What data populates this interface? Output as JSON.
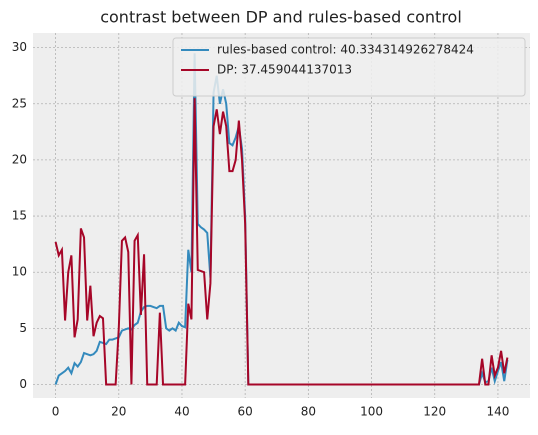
{
  "chart_data": {
    "type": "line",
    "title": "contrast between DP and rules-based control",
    "x": [
      0,
      1,
      2,
      3,
      4,
      5,
      6,
      7,
      8,
      9,
      10,
      11,
      12,
      13,
      14,
      15,
      16,
      17,
      18,
      19,
      20,
      21,
      22,
      23,
      24,
      25,
      26,
      27,
      28,
      29,
      30,
      31,
      32,
      33,
      34,
      35,
      36,
      37,
      38,
      39,
      40,
      41,
      42,
      43,
      44,
      45,
      46,
      47,
      48,
      49,
      50,
      51,
      52,
      53,
      54,
      55,
      56,
      57,
      58,
      59,
      60,
      61,
      62,
      63,
      64,
      65,
      66,
      67,
      68,
      69,
      70,
      71,
      72,
      73,
      74,
      75,
      76,
      77,
      78,
      79,
      80,
      81,
      82,
      83,
      84,
      85,
      86,
      87,
      88,
      89,
      90,
      91,
      92,
      93,
      94,
      95,
      96,
      97,
      98,
      99,
      100,
      101,
      102,
      103,
      104,
      105,
      106,
      107,
      108,
      109,
      110,
      111,
      112,
      113,
      114,
      115,
      116,
      117,
      118,
      119,
      120,
      121,
      122,
      123,
      124,
      125,
      126,
      127,
      128,
      129,
      130,
      131,
      132,
      133,
      134,
      135,
      136,
      137,
      138,
      139,
      140,
      141,
      142,
      143
    ],
    "series": [
      {
        "name": "rules-based control: 40.334314926278424",
        "color": "#348ABD",
        "values": [
          0,
          0.8,
          1.0,
          1.2,
          1.5,
          1.0,
          1.9,
          1.6,
          2.0,
          2.8,
          2.7,
          2.6,
          2.7,
          3.0,
          3.8,
          3.7,
          3.6,
          4.0,
          4.0,
          4.1,
          4.2,
          4.8,
          4.9,
          5.0,
          4.9,
          5.3,
          5.5,
          6.5,
          6.9,
          7.0,
          7.0,
          6.9,
          6.8,
          7.0,
          7.0,
          5.0,
          4.8,
          5.0,
          4.8,
          5.5,
          5.2,
          5.1,
          12.0,
          10.0,
          29.5,
          14.3,
          14.0,
          13.8,
          13.5,
          9.5,
          26.0,
          27.5,
          25.0,
          26.3,
          25.0,
          21.5,
          21.3,
          22.0,
          23.0,
          21.0,
          15.0,
          0,
          0,
          0,
          0,
          0,
          0,
          0,
          0,
          0,
          0,
          0,
          0,
          0,
          0,
          0,
          0,
          0,
          0,
          0,
          0,
          0,
          0,
          0,
          0,
          0,
          0,
          0,
          0,
          0,
          0,
          0,
          0,
          0,
          0,
          0,
          0,
          0,
          0,
          0,
          0,
          0,
          0,
          0,
          0,
          0,
          0,
          0,
          0,
          0,
          0,
          0,
          0,
          0,
          0,
          0,
          0,
          0,
          0,
          0,
          0,
          0,
          0,
          0,
          0,
          0,
          0,
          0,
          0,
          0,
          0,
          0,
          0,
          0,
          0,
          1.0,
          0.2,
          0.3,
          1.5,
          0.3,
          1.2,
          2.0,
          0.3,
          2.2
        ]
      },
      {
        "name": "DP: 37.459044137013",
        "color": "#A60628",
        "values": [
          12.7,
          11.5,
          12.0,
          5.7,
          10.0,
          11.5,
          4.2,
          5.8,
          13.9,
          13.1,
          5.7,
          8.8,
          4.3,
          5.5,
          6.1,
          5.9,
          0,
          0,
          0,
          0,
          5.0,
          12.8,
          13.1,
          11.8,
          0,
          12.8,
          13.3,
          6.2,
          11.6,
          0,
          0,
          0,
          0,
          6.4,
          0,
          0,
          0,
          0,
          0,
          0,
          0,
          0,
          7.2,
          5.8,
          25.5,
          10.2,
          10.1,
          10.0,
          5.8,
          9.0,
          23.0,
          24.5,
          22.3,
          24.3,
          23.0,
          19.0,
          19.0,
          20.0,
          23.5,
          20.0,
          14.3,
          0,
          0,
          0,
          0,
          0,
          0,
          0,
          0,
          0,
          0,
          0,
          0,
          0,
          0,
          0,
          0,
          0,
          0,
          0,
          0,
          0,
          0,
          0,
          0,
          0,
          0,
          0,
          0,
          0,
          0,
          0,
          0,
          0,
          0,
          0,
          0,
          0,
          0,
          0,
          0,
          0,
          0,
          0,
          0,
          0,
          0,
          0,
          0,
          0,
          0,
          0,
          0,
          0,
          0,
          0,
          0,
          0,
          0,
          0,
          0,
          0,
          0,
          0,
          0,
          0,
          0,
          0,
          0,
          0,
          0,
          0,
          0,
          0,
          0,
          2.3,
          0,
          0,
          2.6,
          0.8,
          1.5,
          3.0,
          1.0,
          2.4
        ]
      }
    ],
    "xlim": [
      -7.15,
      150.15
    ],
    "xticks": [
      0,
      20,
      40,
      60,
      80,
      100,
      120,
      140
    ],
    "ylim": [
      -1.2,
      31.3
    ],
    "yticks": [
      0,
      5,
      10,
      15,
      20,
      25,
      30
    ],
    "grid": true,
    "legend": "upper right"
  }
}
